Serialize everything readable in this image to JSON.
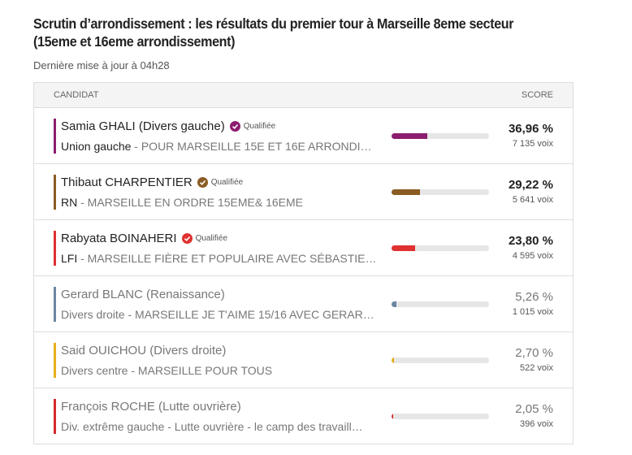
{
  "header": {
    "title": "Scrutin d’arrondissement : les résultats du premier tour à Marseille 8eme secteur (15eme et 16eme arrondissement)",
    "updated": "Dernière mise à jour à 04h28"
  },
  "table": {
    "columns": [
      "CANDIDAT",
      "SCORE"
    ],
    "rows": [
      {
        "name": "Samia GHALI (Divers gauche)",
        "badge": "Qualifiée",
        "party": "Union gauche",
        "list": "- POUR MARSEILLE 15E ET 16E ARRONDI…",
        "score": {
          "value": 36.96,
          "label": "36,96 %"
        },
        "votes": "7 135 voix",
        "color": "#8c1d6e",
        "qualified": true
      },
      {
        "name": "Thibaut CHARPENTIER",
        "badge": "Qualifiée",
        "party": "RN",
        "list": "- MARSEILLE EN ORDRE 15EME& 16EME",
        "score": {
          "value": 29.22,
          "label": "29,22 %"
        },
        "votes": "5 641 voix",
        "color": "#8a5b22",
        "qualified": true
      },
      {
        "name": "Rabyata BOINAHERI",
        "badge": "Qualifiée",
        "party": "LFI",
        "list": "- MARSEILLE FIÈRE ET POPULAIRE AVEC SÉBASTIE…",
        "score": {
          "value": 23.8,
          "label": "23,80 %"
        },
        "votes": "4 595 voix",
        "color": "#e03131",
        "qualified": true
      },
      {
        "name": "Gerard BLANC (Renaissance)",
        "party": "Divers droite",
        "list": "- MARSEILLE JE T'AIME 15/16 AVEC GERAR…",
        "score": {
          "value": 5.26,
          "label": "5,26 %"
        },
        "votes": "1 015 voix",
        "color": "#6a87a3",
        "qualified": false
      },
      {
        "name": "Said OUICHOU (Divers droite)",
        "party": "Divers centre",
        "list": "- MARSEILLE POUR TOUS",
        "score": {
          "value": 2.7,
          "label": "2,70 %"
        },
        "votes": "522 voix",
        "color": "#e6b01e",
        "qualified": false
      },
      {
        "name": "François ROCHE (Lutte ouvrière)",
        "party": "Div. extrême gauche",
        "list": "- Lutte ouvrière - le camp des travaill…",
        "score": {
          "value": 2.05,
          "label": "2,05 %"
        },
        "votes": "396 voix",
        "color": "#d42a2a",
        "qualified": false
      }
    ]
  }
}
